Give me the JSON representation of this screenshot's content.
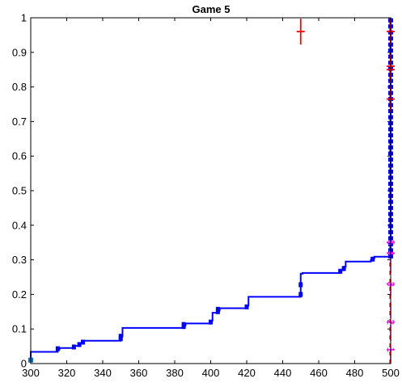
{
  "chart_data": {
    "type": "line",
    "title": "Game 5",
    "xlabel": "",
    "ylabel": "",
    "xlim": [
      300,
      500
    ],
    "ylim": [
      0,
      1
    ],
    "x_ticks": [
      300,
      320,
      340,
      360,
      380,
      400,
      420,
      440,
      460,
      480,
      500
    ],
    "y_ticks": [
      0,
      0.1,
      0.2,
      0.3,
      0.4,
      0.5,
      0.6,
      0.7,
      0.8,
      0.9,
      1
    ],
    "x_tick_labels": [
      "300",
      "320",
      "340",
      "360",
      "380",
      "400",
      "420",
      "440",
      "460",
      "480",
      "500"
    ],
    "y_tick_labels": [
      "0",
      "0.1",
      "0.2",
      "0.3",
      "0.4",
      "0.5",
      "0.6",
      "0.7",
      "0.8",
      "0.9",
      "1"
    ],
    "grid": false,
    "colors": {
      "step": "#0000ff",
      "red_marker": "#ff0000",
      "magenta_marker": "#ff00ff",
      "start_point": "#0072bd"
    },
    "series": [
      {
        "style": "step",
        "color": "#0000ff",
        "points": [
          [
            300,
            0.007
          ],
          [
            300,
            0.034
          ],
          [
            315,
            0.034
          ],
          [
            315,
            0.041
          ],
          [
            316,
            0.041
          ],
          [
            316,
            0.045
          ],
          [
            324,
            0.045
          ],
          [
            324,
            0.051
          ],
          [
            327,
            0.051
          ],
          [
            327,
            0.058
          ],
          [
            329,
            0.058
          ],
          [
            329,
            0.066
          ],
          [
            350,
            0.066
          ],
          [
            350,
            0.079
          ],
          [
            351,
            0.079
          ],
          [
            351,
            0.103
          ],
          [
            385,
            0.103
          ],
          [
            385,
            0.11
          ],
          [
            386,
            0.11
          ],
          [
            386,
            0.116
          ],
          [
            400,
            0.116
          ],
          [
            400,
            0.124
          ],
          [
            401,
            0.124
          ],
          [
            401,
            0.147
          ],
          [
            404,
            0.147
          ],
          [
            404,
            0.154
          ],
          [
            405,
            0.154
          ],
          [
            405,
            0.16
          ],
          [
            420,
            0.16
          ],
          [
            420,
            0.168
          ],
          [
            421,
            0.168
          ],
          [
            421,
            0.193
          ],
          [
            450,
            0.193
          ],
          [
            450,
            0.26
          ],
          [
            451,
            0.26
          ],
          [
            451,
            0.262
          ],
          [
            472,
            0.262
          ],
          [
            472,
            0.27
          ],
          [
            474,
            0.27
          ],
          [
            474,
            0.28
          ],
          [
            475,
            0.28
          ],
          [
            475,
            0.295
          ],
          [
            489,
            0.295
          ],
          [
            489,
            0.3
          ],
          [
            490,
            0.3
          ],
          [
            490,
            0.305
          ],
          [
            491,
            0.305
          ],
          [
            491,
            0.309
          ],
          [
            499,
            0.309
          ],
          [
            499,
            0.31
          ],
          [
            500,
            0.31
          ],
          [
            500,
            1.0
          ]
        ],
        "squares": [
          [
            315,
            0.043
          ],
          [
            324,
            0.048
          ],
          [
            327,
            0.055
          ],
          [
            329,
            0.062
          ],
          [
            350,
            0.072
          ],
          [
            350,
            0.079
          ],
          [
            385,
            0.107
          ],
          [
            385,
            0.113
          ],
          [
            400,
            0.12
          ],
          [
            404,
            0.15
          ],
          [
            404,
            0.157
          ],
          [
            420,
            0.164
          ],
          [
            450,
            0.2
          ],
          [
            450,
            0.228
          ],
          [
            472,
            0.267
          ],
          [
            474,
            0.275
          ],
          [
            490,
            0.302
          ]
        ]
      }
    ],
    "start_point": [
      300,
      0.01
    ],
    "red_crosses": [
      {
        "x": 450,
        "y": 0.96
      },
      {
        "x": 500,
        "y": 0.96
      },
      {
        "x": 500,
        "y": 0.86
      },
      {
        "x": 500,
        "y": 0.85
      },
      {
        "x": 500,
        "y": 0.765
      }
    ],
    "red_dashed_line": {
      "x": 500,
      "y_from": 0.0,
      "y_to": 1.0
    },
    "magenta_markers": [
      {
        "x": 500,
        "y": 0.04,
        "label": "1"
      },
      {
        "x": 500,
        "y": 0.12,
        "label": "2"
      },
      {
        "x": 500,
        "y": 0.23,
        "label": "3"
      },
      {
        "x": 500,
        "y": 0.32,
        "label": "4"
      },
      {
        "x": 500,
        "y": 0.35,
        "label": "5"
      }
    ],
    "magenta_dashed_line": {
      "x": 500,
      "y_from": 0.0,
      "y_to": 0.38
    }
  }
}
